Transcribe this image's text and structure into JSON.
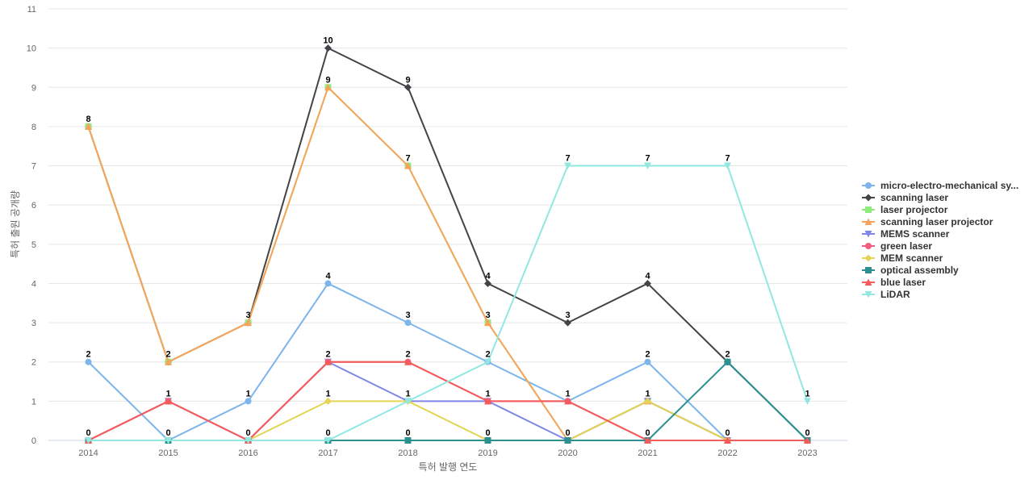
{
  "chart_data": {
    "type": "line",
    "title": "",
    "xlabel": "특허 발행 연도",
    "ylabel": "특허 출원 공개량",
    "ylim": [
      0,
      11
    ],
    "grid": true,
    "legend_position": "right",
    "categories": [
      "2014",
      "2015",
      "2016",
      "2017",
      "2018",
      "2019",
      "2020",
      "2021",
      "2022",
      "2023"
    ],
    "y_ticks": [
      "0",
      "1",
      "2",
      "3",
      "4",
      "5",
      "6",
      "7",
      "8",
      "9",
      "10",
      "11"
    ],
    "series": [
      {
        "name": "micro-electro-mechanical sy...",
        "color": "#7cb5ec",
        "marker": "circle",
        "values": [
          2,
          0,
          1,
          4,
          3,
          2,
          1,
          2,
          0,
          0
        ]
      },
      {
        "name": "scanning laser",
        "color": "#434348",
        "marker": "diamond",
        "values": [
          8,
          2,
          3,
          10,
          9,
          4,
          3,
          4,
          2,
          0
        ]
      },
      {
        "name": "laser projector",
        "color": "#90ed7d",
        "marker": "square",
        "values": [
          8,
          2,
          3,
          9,
          7,
          3,
          0,
          1,
          0,
          0
        ]
      },
      {
        "name": "scanning laser projector",
        "color": "#f7a35c",
        "marker": "triangle",
        "values": [
          8,
          2,
          3,
          9,
          7,
          3,
          0,
          1,
          0,
          0
        ]
      },
      {
        "name": "MEMS scanner",
        "color": "#8085e9",
        "marker": "triangle-down",
        "values": [
          0,
          1,
          0,
          2,
          1,
          1,
          0,
          1,
          0,
          0
        ]
      },
      {
        "name": "green laser",
        "color": "#f15c80",
        "marker": "circle",
        "values": [
          0,
          1,
          0,
          2,
          2,
          1,
          1,
          0,
          0,
          0
        ]
      },
      {
        "name": "MEM scanner",
        "color": "#e4d354",
        "marker": "diamond",
        "values": [
          0,
          0,
          0,
          1,
          1,
          0,
          0,
          1,
          0,
          0
        ]
      },
      {
        "name": "optical assembly",
        "color": "#2b908f",
        "marker": "square",
        "values": [
          0,
          0,
          0,
          0,
          0,
          0,
          0,
          0,
          2,
          0
        ]
      },
      {
        "name": "blue laser",
        "color": "#f45b5b",
        "marker": "triangle",
        "values": [
          0,
          1,
          0,
          2,
          2,
          1,
          1,
          0,
          0,
          0
        ]
      },
      {
        "name": "LiDAR",
        "color": "#91e8e1",
        "marker": "triangle-down",
        "values": [
          0,
          0,
          0,
          0,
          1,
          2,
          7,
          7,
          7,
          1
        ]
      }
    ],
    "data_labels": [
      {
        "category": "2014",
        "value": 8,
        "text": "8"
      },
      {
        "category": "2014",
        "value": 2,
        "text": "2"
      },
      {
        "category": "2014",
        "value": 0,
        "text": "0"
      },
      {
        "category": "2015",
        "value": 2,
        "text": "2"
      },
      {
        "category": "2015",
        "value": 1,
        "text": "1"
      },
      {
        "category": "2015",
        "value": 0,
        "text": "0"
      },
      {
        "category": "2016",
        "value": 3,
        "text": "3"
      },
      {
        "category": "2016",
        "value": 1,
        "text": "1"
      },
      {
        "category": "2016",
        "value": 0,
        "text": "0"
      },
      {
        "category": "2017",
        "value": 10,
        "text": "10"
      },
      {
        "category": "2017",
        "value": 9,
        "text": "9"
      },
      {
        "category": "2017",
        "value": 4,
        "text": "4"
      },
      {
        "category": "2017",
        "value": 2,
        "text": "2"
      },
      {
        "category": "2017",
        "value": 1,
        "text": "1"
      },
      {
        "category": "2017",
        "value": 0,
        "text": "0"
      },
      {
        "category": "2018",
        "value": 9,
        "text": "9"
      },
      {
        "category": "2018",
        "value": 7,
        "text": "7"
      },
      {
        "category": "2018",
        "value": 3,
        "text": "3"
      },
      {
        "category": "2018",
        "value": 2,
        "text": "2"
      },
      {
        "category": "2018",
        "value": 1,
        "text": "1"
      },
      {
        "category": "2018",
        "value": 0,
        "text": "0"
      },
      {
        "category": "2019",
        "value": 4,
        "text": "4"
      },
      {
        "category": "2019",
        "value": 3,
        "text": "3"
      },
      {
        "category": "2019",
        "value": 2,
        "text": "2"
      },
      {
        "category": "2019",
        "value": 1,
        "text": "1"
      },
      {
        "category": "2019",
        "value": 0,
        "text": "0"
      },
      {
        "category": "2020",
        "value": 7,
        "text": "7"
      },
      {
        "category": "2020",
        "value": 3,
        "text": "3"
      },
      {
        "category": "2020",
        "value": 1,
        "text": "1"
      },
      {
        "category": "2020",
        "value": 0,
        "text": "0"
      },
      {
        "category": "2021",
        "value": 7,
        "text": "7"
      },
      {
        "category": "2021",
        "value": 4,
        "text": "4"
      },
      {
        "category": "2021",
        "value": 2,
        "text": "2"
      },
      {
        "category": "2021",
        "value": 1,
        "text": "1"
      },
      {
        "category": "2021",
        "value": 0,
        "text": "0"
      },
      {
        "category": "2022",
        "value": 7,
        "text": "7"
      },
      {
        "category": "2022",
        "value": 2,
        "text": "2"
      },
      {
        "category": "2022",
        "value": 0,
        "text": "0"
      },
      {
        "category": "2023",
        "value": 1,
        "text": "1"
      },
      {
        "category": "2023",
        "value": 0,
        "text": "0"
      }
    ]
  }
}
